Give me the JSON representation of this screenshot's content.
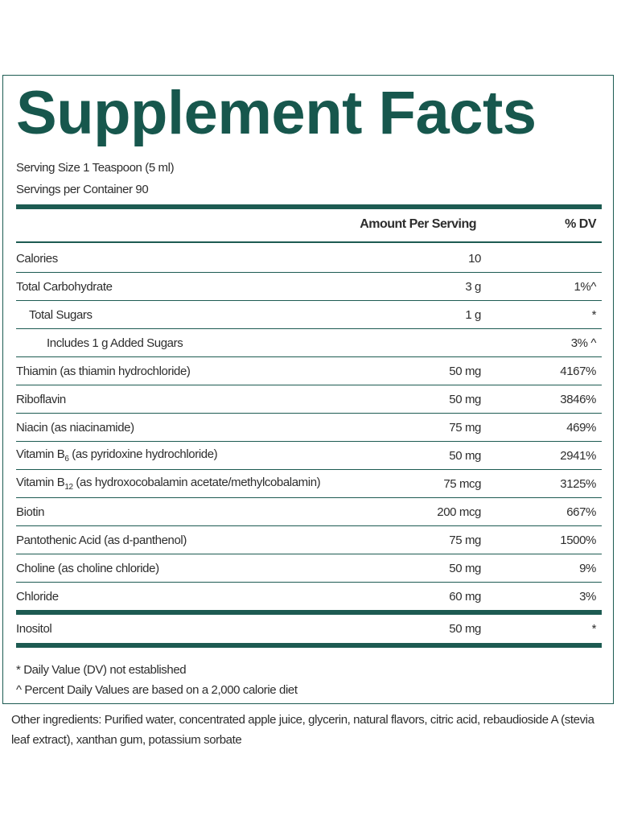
{
  "header": {
    "title": "Supplement Facts",
    "serving_size": "Serving Size 1 Teaspoon (5 ml)",
    "servings_per_container": "Servings per Container 90"
  },
  "table": {
    "columns": [
      "Amount Per Serving",
      "% DV"
    ],
    "rows": [
      {
        "name": "Calories",
        "amount": "10"
      },
      {
        "name": "Total Carbohydrate",
        "amount": "3 g",
        "dv": "1%^"
      },
      {
        "name": "Total Sugars",
        "amount": "1 g",
        "dv": "*"
      },
      {
        "name": "Includes 1 g Added Sugars",
        "dv": "3% ^"
      },
      {
        "name": "Thiamin (as thiamin hydrochloride)",
        "amount": "50 mg",
        "dv": "4167%"
      },
      {
        "name": "Riboflavin",
        "amount": "50 mg",
        "dv": "3846%"
      },
      {
        "name": "Niacin (as niacinamide)",
        "amount": "75 mg",
        "dv": "469%"
      },
      {
        "name": "Vitamin B",
        "sub": "6",
        "detail": " (as pyridoxine hydrochloride)",
        "amount": "50 mg",
        "dv": "2941%"
      },
      {
        "name": "Vitamin B",
        "sub": "12",
        "detail": " (as hydroxocobalamin acetate/methylcobalamin)",
        "amount": "75 mcg",
        "dv": "3125%"
      },
      {
        "name": "Biotin",
        "amount": "200 mcg",
        "dv": "667%"
      },
      {
        "name": "Pantothenic Acid (as d-panthenol)",
        "amount": "75 mg",
        "dv": "1500%"
      },
      {
        "name": "Choline (as choline chloride)",
        "amount": "50 mg",
        "dv": "9%"
      },
      {
        "name": "Chloride",
        "amount": "60 mg",
        "dv": "3%"
      },
      {
        "name": "Inositol",
        "amount": "50 mg",
        "dv": "*"
      }
    ]
  },
  "footnotes": [
    "* Daily Value (DV) not established",
    "^ Percent Daily Values are based on a 2,000 calorie diet"
  ],
  "other_ingredients": "Other ingredients: Purified water, concentrated apple juice, glycerin, natural flavors, citric acid, rebaudioside A (stevia leaf extract), xanthan gum, potassium sorbate"
}
